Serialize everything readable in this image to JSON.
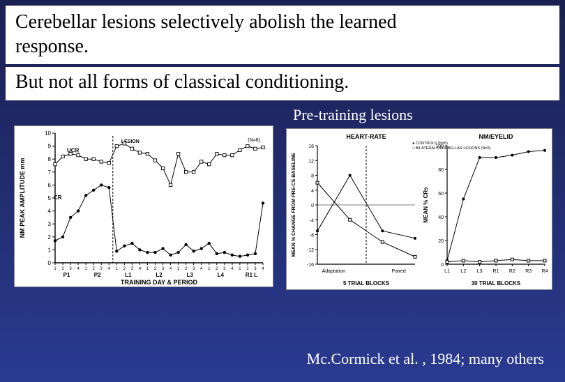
{
  "header": {
    "title_line1": "Cerebellar lesions selectively abolish the learned",
    "title_line2": "response.",
    "subtitle": "But not all forms of classical conditioning."
  },
  "pre_training_label": "Pre-training lesions",
  "citation": "Mc.Cormick et al. , 1984; many others",
  "colors": {
    "bg_top": "#1a2050",
    "bg_bottom": "#2a3a90",
    "panel_bg": "#ffffff",
    "axis": "#000000",
    "marker": "#000000",
    "lesion_line": "#000000"
  },
  "fig_left": {
    "type": "line",
    "title_small": "",
    "y_label": "NM PEAK AMPLITUDE mm",
    "x_label": "TRAINING DAY & PERIOD",
    "ylim": [
      0,
      10
    ],
    "ytick_labels": [
      "0",
      "1",
      "2",
      "3",
      "4",
      "5",
      "6",
      "7",
      "8",
      "9",
      "10"
    ],
    "x_ticks_major": [
      "P1",
      "P2",
      "L1",
      "L2",
      "L3",
      "L4",
      "R1 L"
    ],
    "series": [
      {
        "name": "UCR",
        "marker": "square-open",
        "x": [
          1,
          2,
          3,
          4,
          5,
          6,
          7,
          8,
          9,
          10,
          11,
          12,
          13,
          14,
          15,
          16,
          17,
          18,
          19,
          20,
          21,
          22,
          23,
          24,
          25,
          26,
          27,
          28
        ],
        "y": [
          7.6,
          8.2,
          8.4,
          8.3,
          8.0,
          8.0,
          7.8,
          7.7,
          9.0,
          9.2,
          8.8,
          8.5,
          8.4,
          7.9,
          7.3,
          6.0,
          8.4,
          7.0,
          7.0,
          7.8,
          7.6,
          8.4,
          8.3,
          8.3,
          8.7,
          9.0,
          8.8,
          8.9
        ],
        "color": "#000000",
        "linewidth": 1
      },
      {
        "name": "CR",
        "marker": "circle-filled",
        "x": [
          1,
          2,
          3,
          4,
          5,
          6,
          7,
          8,
          9,
          10,
          11,
          12,
          13,
          14,
          15,
          16,
          17,
          18,
          19,
          20,
          21,
          22,
          23,
          24,
          25,
          26,
          27,
          28
        ],
        "y": [
          1.7,
          2.0,
          3.5,
          4.0,
          5.2,
          5.6,
          6.0,
          5.8,
          0.9,
          1.3,
          1.5,
          1.0,
          0.8,
          0.8,
          1.1,
          0.6,
          0.8,
          1.4,
          0.9,
          1.1,
          1.5,
          0.7,
          0.8,
          0.6,
          0.5,
          0.6,
          0.7,
          4.6
        ],
        "color": "#000000",
        "linewidth": 1
      }
    ],
    "lesion_marker_x": 8.5,
    "lesion_label": "LESION",
    "n_label": "(N=8)"
  },
  "fig_right": {
    "type": "line-double",
    "left_panel_title": "HEART-RATE",
    "right_panel_title": "NM/EYELID",
    "x_label": "5 TRIAL BLOCKS",
    "x_label_right": "30 TRIAL BLOCKS",
    "left": {
      "y_label": "MEAN % CHANGE FROM PRE-CS BASELINE",
      "ylim": [
        -16,
        16
      ],
      "yticks": [
        -16,
        -12,
        -8,
        -4,
        0,
        4,
        8,
        12,
        16
      ],
      "x_ticks": [
        "Adaptation",
        "Paired"
      ],
      "lesion_x": 2.5,
      "series": [
        {
          "name": "CONTROLS (N=5)",
          "marker": "circle-filled",
          "x": [
            1,
            2,
            3,
            4
          ],
          "y": [
            -7,
            8,
            -7,
            -9
          ],
          "color": "#000000"
        },
        {
          "name": "BILATERAL CEREBELLAR LESIONS (N=5)",
          "marker": "square-open",
          "x": [
            1,
            2,
            3,
            4
          ],
          "y": [
            6,
            -4,
            -10,
            -14
          ],
          "color": "#000000"
        }
      ]
    },
    "right": {
      "y_label": "MEAN % CRs",
      "ylim": [
        0,
        100
      ],
      "yticks": [
        0,
        20,
        40,
        60,
        80,
        100
      ],
      "x_ticks": [
        "L1",
        "L2",
        "L3",
        "R1",
        "R2",
        "R3",
        "R4"
      ],
      "series": [
        {
          "name": "CONTROLS",
          "marker": "circle-filled",
          "x": [
            1,
            2,
            3,
            4,
            5,
            6,
            7
          ],
          "y": [
            3,
            55,
            90,
            90,
            92,
            95,
            96
          ],
          "color": "#000000"
        },
        {
          "name": "LESIONS",
          "marker": "square-open",
          "x": [
            1,
            2,
            3,
            4,
            5,
            6,
            7
          ],
          "y": [
            2,
            3,
            2,
            3,
            4,
            3,
            3
          ],
          "color": "#000000"
        }
      ]
    },
    "legend": [
      "CONTROLS (N=5)",
      "BILATERAL CEREBELLAR LESIONS (N=5)"
    ]
  }
}
